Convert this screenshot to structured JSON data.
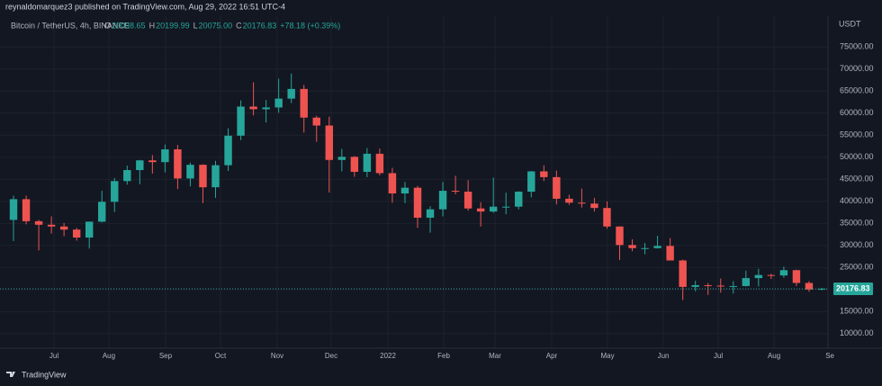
{
  "chart_data": {
    "type": "candlestick",
    "publisher_line": "reynaldomarquez3 published on TradingView.com, Aug 29, 2022 16:51 UTC-4",
    "symbol_line": "Bitcoin / TetherUS, 4h, BINANCE",
    "ohlc_legend": [
      {
        "key": "O",
        "text": "20098.65"
      },
      {
        "key": "H",
        "text": "20199.99"
      },
      {
        "key": "L",
        "text": "20075.00"
      },
      {
        "key": "C",
        "text": "20176.83"
      }
    ],
    "change_text": "+78.18 (+0.39%)",
    "currency": "USDT",
    "brand": "TradingView",
    "up_color": "#26a69a",
    "down_color": "#ef5350",
    "grid": true,
    "categories": [
      null,
      null,
      null,
      null,
      null,
      null,
      null,
      null,
      null,
      null,
      null,
      null,
      null,
      null,
      null,
      null,
      null,
      null,
      null,
      null,
      null,
      null,
      null,
      null,
      null,
      null,
      null,
      null,
      null,
      null,
      null,
      null,
      null,
      null,
      null,
      null,
      null,
      null,
      null,
      null,
      null,
      null,
      null,
      null,
      null,
      null,
      null,
      null,
      null,
      null,
      null,
      null,
      null,
      null,
      null,
      null,
      null,
      null,
      null,
      null,
      null,
      null,
      null,
      null,
      null
    ],
    "open": [
      35800,
      40500,
      35500,
      34700,
      34300,
      33600,
      31800,
      35400,
      39900,
      44600,
      47100,
      49300,
      48900,
      51800,
      45200,
      48300,
      43200,
      48200,
      54900,
      61500,
      60900,
      61300,
      63300,
      65500,
      59000,
      57200,
      49400,
      50100,
      46700,
      50800,
      46400,
      41800,
      43100,
      36300,
      38200,
      42400,
      42200,
      38400,
      37700,
      38800,
      38800,
      42200,
      46800,
      45500,
      40600,
      39700,
      39500,
      38500,
      34300,
      30100,
      29400,
      29400,
      29900,
      26600,
      20600,
      21000,
      20900,
      20800,
      20800,
      22600,
      23300,
      23200,
      24400,
      21500,
      20000
    ],
    "high": [
      41300,
      41300,
      35800,
      36600,
      35100,
      34000,
      35400,
      42400,
      45300,
      48100,
      49400,
      50500,
      52900,
      52800,
      48800,
      48400,
      49200,
      56600,
      62900,
      67000,
      63000,
      67800,
      69000,
      66400,
      59400,
      59200,
      51900,
      50300,
      52100,
      52000,
      47600,
      44400,
      43500,
      38900,
      44400,
      45800,
      44800,
      39800,
      45400,
      42000,
      42300,
      46900,
      48200,
      47000,
      41500,
      42900,
      40800,
      40000,
      34300,
      31400,
      30600,
      32200,
      31700,
      26800,
      22000,
      21500,
      22500,
      21900,
      24300,
      24700,
      23600,
      25200,
      24500,
      21900,
      20400
    ],
    "low": [
      31000,
      34800,
      28900,
      32700,
      32100,
      31100,
      29300,
      35200,
      37600,
      43800,
      43900,
      46300,
      46600,
      42800,
      43400,
      39600,
      40800,
      46900,
      53900,
      59500,
      57900,
      60100,
      62300,
      55600,
      53500,
      42000,
      46800,
      45600,
      45500,
      45900,
      39700,
      39600,
      34000,
      32900,
      36600,
      41600,
      37900,
      34300,
      37400,
      37100,
      38200,
      40900,
      44600,
      39300,
      39200,
      38600,
      37700,
      33800,
      26700,
      28700,
      28000,
      29300,
      26600,
      17600,
      19600,
      18800,
      19300,
      19100,
      20700,
      20700,
      22400,
      22700,
      20800,
      19500,
      19800
    ],
    "close": [
      40500,
      35500,
      34700,
      34300,
      33600,
      31800,
      35400,
      39900,
      44600,
      47100,
      49300,
      48900,
      51800,
      45200,
      48300,
      43200,
      48200,
      54900,
      61500,
      60900,
      61300,
      63300,
      65500,
      59000,
      57200,
      49400,
      50100,
      46700,
      50800,
      46400,
      41800,
      43100,
      36300,
      38200,
      42400,
      42200,
      38400,
      37700,
      38800,
      38800,
      42200,
      46800,
      45500,
      40600,
      39700,
      39500,
      38500,
      34300,
      30100,
      29400,
      29400,
      29900,
      26600,
      20600,
      21000,
      20900,
      20800,
      20800,
      22600,
      23300,
      23200,
      24400,
      21500,
      20000,
      20200
    ],
    "xlim": [
      -0.5,
      64.5
    ],
    "xticks": [
      {
        "value": 3.21,
        "label": "Jul"
      },
      {
        "value": 7.55,
        "label": "Aug"
      },
      {
        "value": 12.04,
        "label": "Sep"
      },
      {
        "value": 16.39,
        "label": "Oct"
      },
      {
        "value": 20.88,
        "label": "Nov"
      },
      {
        "value": 25.16,
        "label": "Dec"
      },
      {
        "value": 29.65,
        "label": "2022"
      },
      {
        "value": 34.07,
        "label": "Feb"
      },
      {
        "value": 38.13,
        "label": "Mar"
      },
      {
        "value": 42.62,
        "label": "Apr"
      },
      {
        "value": 47.04,
        "label": "May"
      },
      {
        "value": 51.46,
        "label": "Jun"
      },
      {
        "value": 55.81,
        "label": "Jul"
      },
      {
        "value": 60.23,
        "label": "Aug"
      },
      {
        "value": 64.65,
        "label": "Se"
      }
    ],
    "ylim": [
      6700,
      82000
    ],
    "yticks": [
      {
        "value": 10000,
        "label": "10000.00"
      },
      {
        "value": 15000,
        "label": "15000.00"
      },
      {
        "value": 20000,
        "label": "20000.00"
      },
      {
        "value": 25000,
        "label": "25000.00"
      },
      {
        "value": 30000,
        "label": "30000.00"
      },
      {
        "value": 35000,
        "label": "35000.00"
      },
      {
        "value": 40000,
        "label": "40000.00"
      },
      {
        "value": 45000,
        "label": "45000.00"
      },
      {
        "value": 50000,
        "label": "50000.00"
      },
      {
        "value": 55000,
        "label": "55000.00"
      },
      {
        "value": 60000,
        "label": "60000.00"
      },
      {
        "value": 65000,
        "label": "65000.00"
      },
      {
        "value": 70000,
        "label": "70000.00"
      },
      {
        "value": 75000,
        "label": "75000.00"
      }
    ],
    "last_price": {
      "value": 20176.83,
      "label": "20176.83"
    }
  }
}
